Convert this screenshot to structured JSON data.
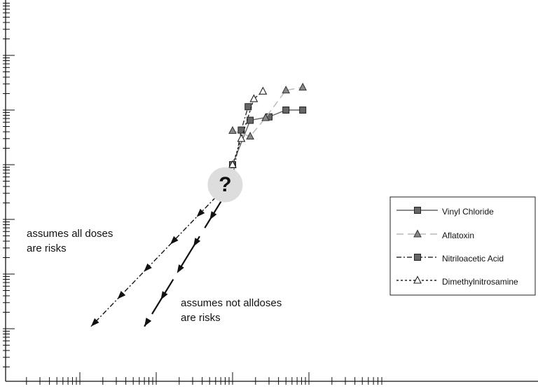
{
  "chart_data": {
    "type": "line",
    "xscale": "log",
    "yscale": "log",
    "grid": false,
    "legend_position": "right",
    "series": [
      {
        "name": "Vinyl Chloride",
        "color": "#666666",
        "dash": "solid",
        "marker": "square-filled",
        "x": [
          1.0,
          1.7,
          3.0,
          5.0,
          8.3
        ],
        "y": [
          0.1,
          0.65,
          0.75,
          1.0,
          1.0
        ]
      },
      {
        "name": "Aflatoxin",
        "color": "#b8b8b8",
        "dash": "long-dash",
        "marker": "triangle-filled",
        "x": [
          1.0,
          1.7,
          2.7,
          5.0,
          8.3
        ],
        "y": [
          0.42,
          0.33,
          0.72,
          2.3,
          2.6
        ]
      },
      {
        "name": "Nitriloacetic Acid",
        "color": "#333333",
        "dash": "dash-dot",
        "marker": "square-filled",
        "x": [
          1.0,
          1.3,
          1.6
        ],
        "y": [
          0.06,
          0.43,
          1.15
        ]
      },
      {
        "name": "Dimethylnitrosamine",
        "color": "#222222",
        "dash": "short-dash",
        "marker": "triangle-open",
        "x": [
          1.0,
          1.3,
          1.9,
          2.5
        ],
        "y": [
          0.1,
          0.3,
          1.6,
          2.2
        ]
      }
    ],
    "extrapolations": [
      {
        "label": "assumes all doses are risks",
        "style": "dash-dot",
        "from": [
          0.75,
          0.035
        ],
        "to": [
          0.014,
          0.00011
        ]
      },
      {
        "label": "assumes not alldoses are risks",
        "style": "solid-broken",
        "from": [
          0.82,
          0.03
        ],
        "to": [
          0.07,
          0.00011
        ]
      }
    ],
    "question_marker": {
      "text": "?",
      "at": [
        0.8,
        0.043
      ]
    },
    "annotations": [
      {
        "lines": [
          "assumes all doses",
          "are risks"
        ]
      },
      {
        "lines": [
          "assumes not alldoses",
          "are risks"
        ]
      }
    ]
  }
}
